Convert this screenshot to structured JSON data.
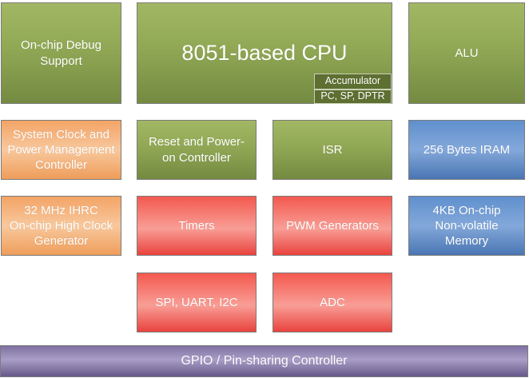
{
  "palette": {
    "green": "#8ea653",
    "orange": "#f4ab6e",
    "red": "#f26158",
    "blue": "#5c8cc9",
    "purple": "#8378a6",
    "olive_dark": "#5d6f31",
    "border_gray": "#7b7b7b",
    "text": "#ffffff"
  },
  "blocks": {
    "debug": {
      "label": "On-chip Debug\nSupport",
      "color": "#8ea653"
    },
    "cpu": {
      "label": "8051-based CPU",
      "color": "#8ea653"
    },
    "alu": {
      "label": "ALU",
      "color": "#8ea653"
    },
    "acc": {
      "label": "Accumulator",
      "color": "#5d6f31"
    },
    "pcsp": {
      "label": "PC, SP, DPTR",
      "color": "#5d6f31"
    },
    "sysclk": {
      "label": "System Clock and\nPower Management\nController",
      "color": "#f4ab6e"
    },
    "reset": {
      "label": "Reset and Power-\non Controller",
      "color": "#8ea653"
    },
    "isr": {
      "label": "ISR",
      "color": "#8ea653"
    },
    "iram": {
      "label": "256 Bytes IRAM",
      "color": "#5c8cc9"
    },
    "ihrc": {
      "label": "32 MHz IHRC\nOn-chip High Clock\nGenerator",
      "color": "#f4ab6e"
    },
    "timers": {
      "label": "Timers",
      "color": "#f26158"
    },
    "pwm": {
      "label": "PWM Generators",
      "color": "#f26158"
    },
    "nvm": {
      "label": "4KB On-chip\nNon-volatile\nMemory",
      "color": "#5c8cc9"
    },
    "spi": {
      "label": "SPI, UART, I2C",
      "color": "#f26158"
    },
    "adc": {
      "label": "ADC",
      "color": "#f26158"
    },
    "gpio": {
      "label": "GPIO / Pin-sharing Controller",
      "color": "#8378a6"
    }
  }
}
